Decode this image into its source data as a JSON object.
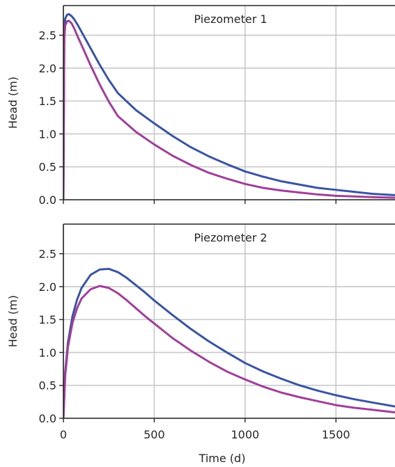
{
  "chart_data": [
    {
      "type": "line",
      "title": "Piezometer 1",
      "xlabel": "",
      "ylabel": "Head (m)",
      "xlim": [
        0,
        1825
      ],
      "ylim": [
        0,
        2.95
      ],
      "x_ticks": [
        0,
        500,
        1000,
        1500
      ],
      "y_ticks": [
        0.0,
        0.5,
        1.0,
        1.5,
        2.0,
        2.5
      ],
      "y_tick_labels": [
        "0.0",
        "0.5",
        "1.0",
        "1.5",
        "2.0",
        "2.5"
      ],
      "x_tick_labels_visible": false,
      "grid": true,
      "series": [
        {
          "color": "#3a54a4",
          "x": [
            0,
            5,
            10,
            20,
            30,
            45,
            60,
            80,
            100,
            150,
            200,
            250,
            300,
            400,
            500,
            600,
            700,
            800,
            900,
            1000,
            1100,
            1200,
            1300,
            1400,
            1500,
            1600,
            1700,
            1825
          ],
          "y": [
            0,
            2.55,
            2.75,
            2.81,
            2.82,
            2.79,
            2.74,
            2.65,
            2.55,
            2.3,
            2.05,
            1.82,
            1.62,
            1.36,
            1.16,
            0.97,
            0.8,
            0.66,
            0.54,
            0.43,
            0.35,
            0.28,
            0.23,
            0.18,
            0.15,
            0.12,
            0.09,
            0.07
          ]
        },
        {
          "color": "#a03f9a",
          "x": [
            0,
            5,
            10,
            20,
            30,
            45,
            60,
            80,
            100,
            150,
            200,
            250,
            300,
            400,
            500,
            600,
            700,
            800,
            900,
            1000,
            1100,
            1200,
            1300,
            1400,
            1500,
            1600,
            1700,
            1825
          ],
          "y": [
            0,
            2.45,
            2.65,
            2.71,
            2.72,
            2.68,
            2.6,
            2.47,
            2.35,
            2.04,
            1.75,
            1.49,
            1.27,
            1.03,
            0.84,
            0.67,
            0.53,
            0.41,
            0.32,
            0.24,
            0.18,
            0.14,
            0.11,
            0.08,
            0.06,
            0.05,
            0.04,
            0.03
          ]
        }
      ]
    },
    {
      "type": "line",
      "title": "Piezometer 2",
      "xlabel": "Time (d)",
      "ylabel": "Head (m)",
      "xlim": [
        0,
        1825
      ],
      "ylim": [
        0,
        2.95
      ],
      "x_ticks": [
        0,
        500,
        1000,
        1500
      ],
      "x_tick_labels": [
        "0",
        "500",
        "1000",
        "1500"
      ],
      "y_ticks": [
        0.0,
        0.5,
        1.0,
        1.5,
        2.0,
        2.5
      ],
      "y_tick_labels": [
        "0.0",
        "0.5",
        "1.0",
        "1.5",
        "2.0",
        "2.5"
      ],
      "x_tick_labels_visible": true,
      "grid": true,
      "series": [
        {
          "color": "#3a54a4",
          "x": [
            0,
            10,
            25,
            50,
            75,
            100,
            150,
            200,
            250,
            300,
            350,
            400,
            450,
            500,
            600,
            700,
            800,
            900,
            1000,
            1100,
            1200,
            1300,
            1400,
            1500,
            1600,
            1700,
            1825
          ],
          "y": [
            0,
            0.7,
            1.15,
            1.55,
            1.8,
            1.98,
            2.18,
            2.26,
            2.27,
            2.22,
            2.13,
            2.02,
            1.91,
            1.79,
            1.57,
            1.36,
            1.17,
            1.0,
            0.84,
            0.71,
            0.6,
            0.5,
            0.42,
            0.35,
            0.29,
            0.24,
            0.18
          ]
        },
        {
          "color": "#a03f9a",
          "x": [
            0,
            10,
            25,
            50,
            75,
            100,
            150,
            200,
            250,
            300,
            350,
            400,
            450,
            500,
            600,
            700,
            800,
            900,
            1000,
            1100,
            1200,
            1300,
            1400,
            1500,
            1600,
            1700,
            1825
          ],
          "y": [
            0,
            0.65,
            1.08,
            1.45,
            1.67,
            1.82,
            1.96,
            2.01,
            1.98,
            1.9,
            1.79,
            1.67,
            1.55,
            1.44,
            1.22,
            1.03,
            0.86,
            0.71,
            0.59,
            0.48,
            0.39,
            0.32,
            0.26,
            0.2,
            0.16,
            0.13,
            0.09
          ]
        }
      ]
    }
  ]
}
